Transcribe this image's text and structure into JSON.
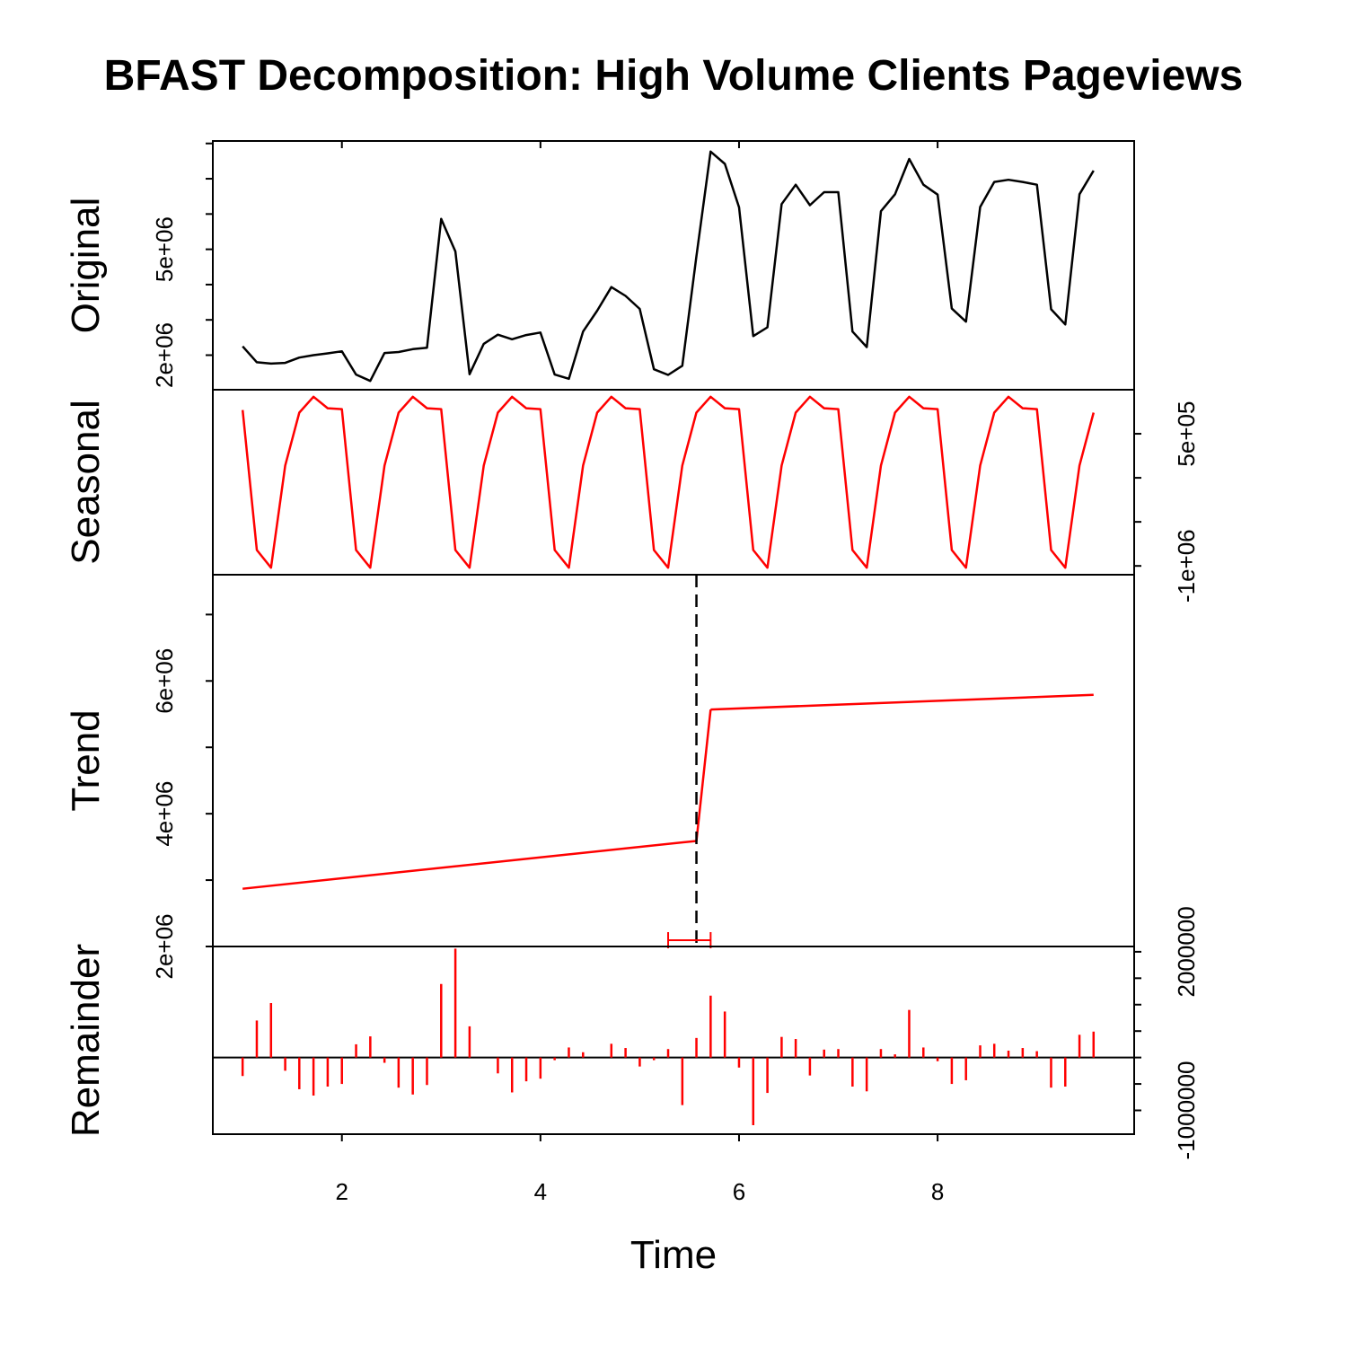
{
  "chart_data": {
    "type": "line",
    "title": "BFAST Decomposition: High Volume Clients Pageviews",
    "xlabel": "Time",
    "xlim": [
      0.7,
      9.98
    ],
    "x_ticks": [
      2,
      4,
      6,
      8
    ],
    "x_tick_labels": [
      "2",
      "4",
      "6",
      "8"
    ],
    "x": [
      1.0,
      1.143,
      1.286,
      1.429,
      1.571,
      1.714,
      1.857,
      2.0,
      2.143,
      2.286,
      2.429,
      2.571,
      2.714,
      2.857,
      3.0,
      3.143,
      3.286,
      3.429,
      3.571,
      3.714,
      3.857,
      4.0,
      4.143,
      4.286,
      4.429,
      4.571,
      4.714,
      4.857,
      5.0,
      5.143,
      5.286,
      5.429,
      5.571,
      5.714,
      5.857,
      6.0,
      6.143,
      6.286,
      6.429,
      6.571,
      6.714,
      6.857,
      7.0,
      7.143,
      7.286,
      7.429,
      7.571,
      7.714,
      7.857,
      8.0,
      8.143,
      8.286,
      8.429,
      8.571,
      8.714,
      8.857,
      9.0,
      9.143,
      9.286,
      9.429,
      9.571
    ],
    "panels": [
      {
        "name": "original",
        "label": "Original",
        "color": "#000000",
        "kind": "line",
        "axis_side": "left",
        "ylim": [
          1020000,
          8070000
        ],
        "y_ticks": [
          2000000,
          5000000
        ],
        "y_tick_labels": [
          "2e+06",
          "5e+06"
        ],
        "minor_ticks": [
          1000000,
          2000000,
          3000000,
          4000000,
          5000000,
          6000000,
          7000000,
          8000000
        ],
        "values": [
          2250000,
          1800000,
          1760000,
          1780000,
          1930000,
          2000000,
          2050000,
          2110000,
          1450000,
          1270000,
          2060000,
          2090000,
          2170000,
          2210000,
          5860000,
          4940000,
          1460000,
          2320000,
          2580000,
          2450000,
          2570000,
          2640000,
          1450000,
          1330000,
          2670000,
          3260000,
          3930000,
          3680000,
          3310000,
          1600000,
          1440000,
          1700000,
          4800000,
          7770000,
          7420000,
          6190000,
          2540000,
          2790000,
          6280000,
          6830000,
          6250000,
          6620000,
          6620000,
          2670000,
          2230000,
          6080000,
          6560000,
          7560000,
          6830000,
          6550000,
          3320000,
          2950000,
          6200000,
          6910000,
          6970000,
          6910000,
          6830000,
          3300000,
          2870000,
          6560000,
          7230000
        ]
      },
      {
        "name": "seasonal",
        "label": "Seasonal",
        "color": "#ff0000",
        "kind": "line",
        "axis_side": "right",
        "ylim": [
          -1100000,
          1000000
        ],
        "y_ticks": [
          -1000000,
          500000
        ],
        "y_tick_labels": [
          "-1e+06",
          "5e+05"
        ],
        "minor_ticks": [
          -1000000,
          -500000,
          0,
          500000
        ],
        "values": [
          770000,
          -820000,
          -1020000,
          140000,
          740000,
          920000,
          790000,
          780000,
          -820000,
          -1020000,
          140000,
          740000,
          920000,
          790000,
          780000,
          -820000,
          -1020000,
          140000,
          740000,
          920000,
          790000,
          780000,
          -820000,
          -1020000,
          140000,
          740000,
          920000,
          790000,
          780000,
          -820000,
          -1020000,
          140000,
          740000,
          920000,
          790000,
          780000,
          -820000,
          -1020000,
          140000,
          740000,
          920000,
          790000,
          780000,
          -820000,
          -1020000,
          140000,
          740000,
          920000,
          790000,
          780000,
          -820000,
          -1020000,
          140000,
          740000,
          920000,
          790000,
          780000,
          -820000,
          -1020000,
          140000,
          740000
        ]
      },
      {
        "name": "trend",
        "label": "Trend",
        "color": "#ff0000",
        "kind": "trend",
        "axis_side": "left",
        "ylim": [
          2000000,
          7600000
        ],
        "y_ticks": [
          2000000,
          4000000,
          6000000
        ],
        "y_tick_labels": [
          "2e+06",
          "4e+06",
          "6e+06"
        ],
        "minor_ticks": [
          2000000,
          3000000,
          4000000,
          5000000,
          6000000,
          7000000
        ],
        "segments": [
          {
            "x": [
              1.0,
              5.571
            ],
            "y": [
              2870000,
              3590000
            ]
          },
          {
            "x": [
              5.571,
              5.714
            ],
            "y": [
              3590000,
              5570000
            ]
          },
          {
            "x": [
              5.714,
              9.571
            ],
            "y": [
              5570000,
              5790000
            ]
          }
        ],
        "breakpoint": {
          "x": 5.571,
          "ci": [
            5.286,
            5.714
          ],
          "ci_color": "#ff0000"
        }
      },
      {
        "name": "remainder",
        "label": "Remainder",
        "color": "#ff0000",
        "kind": "bars",
        "axis_side": "right",
        "ylim": [
          -1450000,
          2100000
        ],
        "y_ticks": [
          -1000000,
          2000000
        ],
        "y_tick_labels": [
          "-1000000",
          "2000000"
        ],
        "minor_ticks": [
          -1000000,
          -500000,
          0,
          500000,
          1000000,
          1500000,
          2000000
        ],
        "values": [
          -350000,
          700000,
          1030000,
          -250000,
          -600000,
          -720000,
          -550000,
          -500000,
          250000,
          400000,
          -100000,
          -570000,
          -700000,
          -520000,
          1390000,
          2060000,
          590000,
          0,
          -300000,
          -660000,
          -450000,
          -400000,
          -50000,
          190000,
          100000,
          0,
          260000,
          180000,
          -170000,
          -50000,
          160000,
          -900000,
          370000,
          1170000,
          870000,
          -190000,
          -1280000,
          -670000,
          390000,
          350000,
          -340000,
          150000,
          160000,
          -550000,
          -640000,
          160000,
          60000,
          900000,
          190000,
          -70000,
          -500000,
          -430000,
          230000,
          260000,
          130000,
          180000,
          120000,
          -570000,
          -550000,
          430000,
          490000
        ]
      }
    ]
  }
}
